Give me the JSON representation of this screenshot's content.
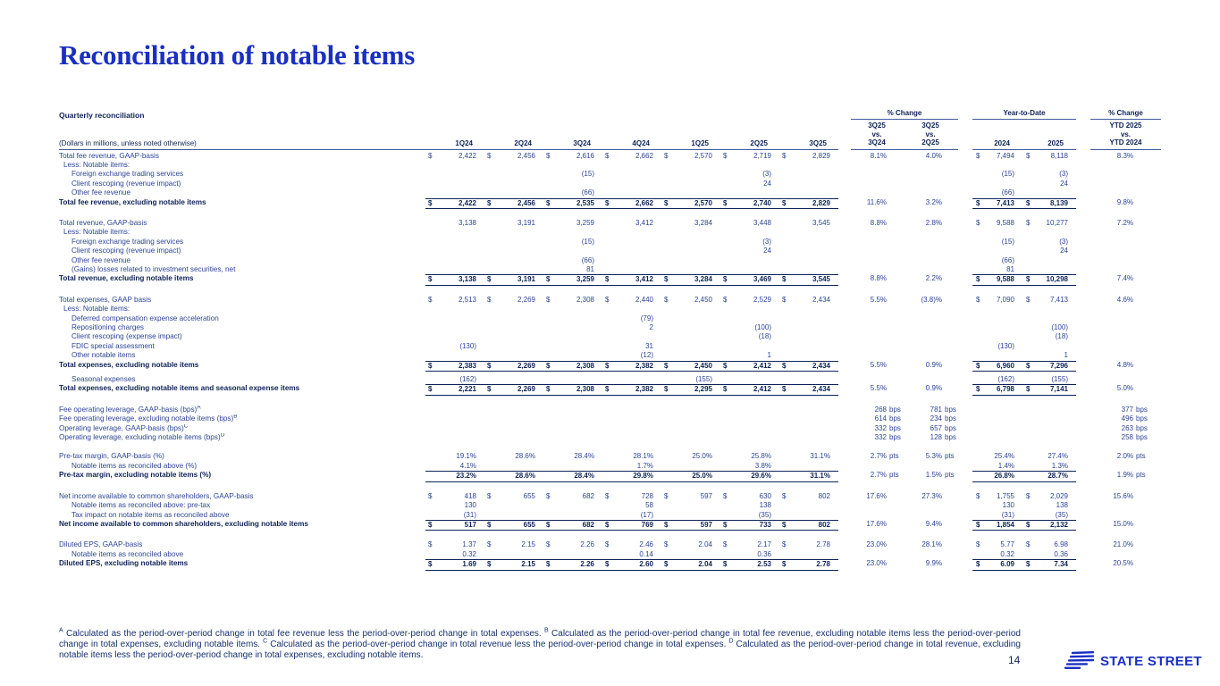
{
  "slide": {
    "title": "Reconciliation of notable items"
  },
  "colors": {
    "brand_blue": "#1a2fc2",
    "text_navy": "#2c4596",
    "dark_navy": "#0d2357"
  },
  "footer": {
    "page_number": "14",
    "logo_text": "STATE STREET",
    "logo_icon": "state-street-flag-icon"
  },
  "footnotes": [
    {
      "sup": "A",
      "text": "Calculated as the period-over-period change in total fee revenue less the period-over-period change in total expenses."
    },
    {
      "sup": "B",
      "text": "Calculated as the period-over-period change in total fee revenue, excluding notable items less the period-over-period change in total expenses, excluding notable items."
    },
    {
      "sup": "C",
      "text": "Calculated as the period-over-period change in total revenue less the period-over-period change in total expenses."
    },
    {
      "sup": "D",
      "text": "Calculated as the period-over-period change in total revenue, excluding notable items less the period-over-period change in total expenses, excluding notable items."
    }
  ],
  "table": {
    "section_title": "Quarterly reconciliation",
    "row_label_header": "(Dollars in millions, unless noted otherwise)",
    "quarter_columns": [
      "1Q24",
      "2Q24",
      "3Q24",
      "4Q24",
      "1Q25",
      "2Q25",
      "3Q25"
    ],
    "pct_change_header": "% Change",
    "ytd_header": "Year-to-Date",
    "ytd_pct_change_header": "% Change",
    "chg_col1": {
      "l1": "3Q25",
      "l2": "vs.",
      "l3": "3Q24"
    },
    "chg_col2": {
      "l1": "3Q25",
      "l2": "vs.",
      "l3": "2Q25"
    },
    "ytd_col1": "2024",
    "ytd_col2": "2025",
    "ytd_chg_col": {
      "l1": "YTD 2025",
      "l2": "vs.",
      "l3": "YTD 2024"
    },
    "rows": [
      {
        "label": "Total fee revenue, GAAP-basis",
        "indent": 0,
        "style": "normal",
        "cells": [
          "$2,422",
          "$2,456",
          "$2,616",
          "$2,662",
          "$2,570",
          "$2,719",
          "$2,829",
          "8.1%",
          "4.0%",
          "$7,494",
          "$8,118",
          "8.3%"
        ]
      },
      {
        "label": "Less: Notable items:",
        "indent": 1,
        "style": "normal",
        "cells": [
          "",
          "",
          "",
          "",
          "",
          "",
          "",
          "",
          "",
          "",
          "",
          ""
        ]
      },
      {
        "label": "Foreign exchange trading services",
        "indent": 2,
        "style": "normal",
        "cells": [
          "",
          "",
          "(15)",
          "",
          "",
          "(3)",
          "",
          "",
          "",
          "(15)",
          "(3)",
          ""
        ]
      },
      {
        "label": "Client rescoping (revenue impact)",
        "indent": 2,
        "style": "normal",
        "cells": [
          "",
          "",
          "",
          "",
          "",
          "24",
          "",
          "",
          "",
          "",
          "24",
          ""
        ]
      },
      {
        "label": "Other fee revenue",
        "indent": 2,
        "style": "normal",
        "cells": [
          "",
          "",
          "(66)",
          "",
          "",
          "",
          "",
          "",
          "",
          "(66)",
          "",
          ""
        ]
      },
      {
        "label": "Total fee revenue, excluding notable items",
        "indent": 0,
        "style": "total",
        "cells": [
          "$2,422",
          "$2,456",
          "$2,535",
          "$2,662",
          "$2,570",
          "$2,740",
          "$2,829",
          "11.6%",
          "3.2%",
          "$7,413",
          "$8,139",
          "9.8%"
        ]
      },
      {
        "style": "spacer"
      },
      {
        "label": "Total revenue, GAAP-basis",
        "indent": 0,
        "style": "normal",
        "cells": [
          "3,138",
          "3,191",
          "3,259",
          "3,412",
          "3,284",
          "3,448",
          "3,545",
          "8.8%",
          "2.8%",
          "$9,588",
          "$10,277",
          "7.2%"
        ]
      },
      {
        "label": "Less: Notable items:",
        "indent": 1,
        "style": "normal",
        "cells": [
          "",
          "",
          "",
          "",
          "",
          "",
          "",
          "",
          "",
          "",
          "",
          ""
        ]
      },
      {
        "label": "Foreign exchange trading services",
        "indent": 2,
        "style": "normal",
        "cells": [
          "",
          "",
          "(15)",
          "",
          "",
          "(3)",
          "",
          "",
          "",
          "(15)",
          "(3)",
          ""
        ]
      },
      {
        "label": "Client rescoping (revenue impact)",
        "indent": 2,
        "style": "normal",
        "cells": [
          "",
          "",
          "",
          "",
          "",
          "24",
          "",
          "",
          "",
          "",
          "24",
          ""
        ]
      },
      {
        "label": "Other fee revenue",
        "indent": 2,
        "style": "normal",
        "cells": [
          "",
          "",
          "(66)",
          "",
          "",
          "",
          "",
          "",
          "",
          "(66)",
          "",
          ""
        ]
      },
      {
        "label": "(Gains) losses related to investment securities, net",
        "indent": 2,
        "style": "normal",
        "cells": [
          "",
          "",
          "81",
          "",
          "",
          "",
          "",
          "",
          "",
          "81",
          "",
          ""
        ]
      },
      {
        "label": "Total revenue, excluding notable items",
        "indent": 0,
        "style": "total",
        "cells": [
          "$3,138",
          "$3,191",
          "$3,259",
          "$3,412",
          "$3,284",
          "$3,469",
          "$3,545",
          "8.8%",
          "2.2%",
          "$9,588",
          "$10,298",
          "7.4%"
        ]
      },
      {
        "style": "spacer"
      },
      {
        "label": "Total expenses, GAAP basis",
        "indent": 0,
        "style": "normal",
        "cells": [
          "$2,513",
          "$2,269",
          "$2,308",
          "$2,440",
          "$2,450",
          "$2,529",
          "$2,434",
          "5.5%",
          "(3.8)%",
          "$7,090",
          "$7,413",
          "4.6%"
        ]
      },
      {
        "label": "Less: Notable items:",
        "indent": 1,
        "style": "normal",
        "cells": [
          "",
          "",
          "",
          "",
          "",
          "",
          "",
          "",
          "",
          "",
          "",
          ""
        ]
      },
      {
        "label": "Deferred compensation expense acceleration",
        "indent": 2,
        "style": "normal",
        "cells": [
          "",
          "",
          "",
          "(79)",
          "",
          "",
          "",
          "",
          "",
          "",
          "",
          ""
        ]
      },
      {
        "label": "Repositioning charges",
        "indent": 2,
        "style": "normal",
        "cells": [
          "",
          "",
          "",
          "2",
          "",
          "(100)",
          "",
          "",
          "",
          "",
          "(100)",
          ""
        ]
      },
      {
        "label": "Client rescoping (expense impact)",
        "indent": 2,
        "style": "normal",
        "cells": [
          "",
          "",
          "",
          "",
          "",
          "(18)",
          "",
          "",
          "",
          "",
          "(18)",
          ""
        ]
      },
      {
        "label": "FDIC special assessment",
        "indent": 2,
        "style": "normal",
        "cells": [
          "(130)",
          "",
          "",
          "31",
          "",
          "",
          "",
          "",
          "",
          "(130)",
          "",
          ""
        ]
      },
      {
        "label": "Other notable items",
        "indent": 2,
        "style": "normal",
        "cells": [
          "",
          "",
          "",
          "(12)",
          "",
          "1",
          "",
          "",
          "",
          "",
          "1",
          ""
        ]
      },
      {
        "label": "Total expenses, excluding notable items",
        "indent": 0,
        "style": "total",
        "cells": [
          "$2,383",
          "$2,269",
          "$2,308",
          "$2,382",
          "$2,450",
          "$2,412",
          "$2,434",
          "5.5%",
          "0.9%",
          "$6,960",
          "$7,296",
          "4.8%"
        ]
      },
      {
        "style": "spacer-sm"
      },
      {
        "label": "Seasonal expenses",
        "indent": 2,
        "style": "normal",
        "cells": [
          "(162)",
          "",
          "",
          "",
          "(155)",
          "",
          "",
          "",
          "",
          "(162)",
          "(155)",
          ""
        ]
      },
      {
        "label": "Total expenses, excluding notable items and seasonal expense items",
        "indent": 0,
        "style": "total",
        "cells": [
          "$2,221",
          "$2,269",
          "$2,308",
          "$2,382",
          "$2,295",
          "$2,412",
          "$2,434",
          "5.5%",
          "0.9%",
          "$6,798",
          "$7,141",
          "5.0%"
        ]
      },
      {
        "style": "spacer"
      },
      {
        "label": "Fee operating leverage, GAAP-basis (bps)",
        "sup": "A",
        "indent": 0,
        "style": "normal",
        "cells": [
          "",
          "",
          "",
          "",
          "",
          "",
          "",
          "268 bps",
          "781 bps",
          "",
          "",
          "377 bps"
        ]
      },
      {
        "label": "Fee operating leverage, excluding notable items (bps)",
        "sup": "B",
        "indent": 0,
        "style": "normal",
        "cells": [
          "",
          "",
          "",
          "",
          "",
          "",
          "",
          "614 bps",
          "234 bps",
          "",
          "",
          "496 bps"
        ]
      },
      {
        "label": "Operating leverage, GAAP-basis (bps)",
        "sup": "C",
        "indent": 0,
        "style": "normal",
        "cells": [
          "",
          "",
          "",
          "",
          "",
          "",
          "",
          "332 bps",
          "657 bps",
          "",
          "",
          "263 bps"
        ]
      },
      {
        "label": "Operating leverage, excluding notable items (bps)",
        "sup": "D",
        "indent": 0,
        "style": "normal",
        "cells": [
          "",
          "",
          "",
          "",
          "",
          "",
          "",
          "332 bps",
          "128 bps",
          "",
          "",
          "258 bps"
        ]
      },
      {
        "style": "spacer"
      },
      {
        "label": "Pre-tax margin, GAAP-basis (%)",
        "indent": 0,
        "style": "normal",
        "cells": [
          "19.1%",
          "28.6%",
          "28.4%",
          "28.1%",
          "25.0%",
          "25.8%",
          "31.1%",
          "2.7% pts",
          "5.3% pts",
          "25.4%",
          "27.4%",
          "2.0% pts"
        ]
      },
      {
        "label": "Notable items as reconciled above (%)",
        "indent": 2,
        "style": "normal",
        "cells": [
          "4.1%",
          "",
          "",
          "1.7%",
          "",
          "3.8%",
          "",
          "",
          "",
          "1.4%",
          "1.3%",
          ""
        ]
      },
      {
        "label": "Pre-tax margin, excluding notable items (%)",
        "indent": 0,
        "style": "total",
        "cells": [
          "23.2%",
          "28.6%",
          "28.4%",
          "29.8%",
          "25.0%",
          "29.6%",
          "31.1%",
          "2.7% pts",
          "1.5% pts",
          "26.8%",
          "28.7%",
          "1.9% pts"
        ]
      },
      {
        "style": "spacer"
      },
      {
        "label": "Net income available to common shareholders, GAAP-basis",
        "indent": 0,
        "style": "normal",
        "cells": [
          "$418",
          "$655",
          "$682",
          "$728",
          "$597",
          "$630",
          "$802",
          "17.6%",
          "27.3%",
          "$1,755",
          "$2,029",
          "15.6%"
        ]
      },
      {
        "label": "Notable items as reconciled above: pre-tax",
        "indent": 2,
        "style": "normal",
        "cells": [
          "130",
          "",
          "",
          "58",
          "",
          "138",
          "",
          "",
          "",
          "130",
          "138",
          ""
        ]
      },
      {
        "label": "Tax impact on notable items as reconciled above",
        "indent": 2,
        "style": "normal",
        "cells": [
          "(31)",
          "",
          "",
          "(17)",
          "",
          "(35)",
          "",
          "",
          "",
          "(31)",
          "(35)",
          ""
        ]
      },
      {
        "label": "Net income available to common shareholders, excluding notable items",
        "indent": 0,
        "style": "total",
        "cells": [
          "$517",
          "$655",
          "$682",
          "$769",
          "$597",
          "$733",
          "$802",
          "17.6%",
          "9.4%",
          "$1,854",
          "$2,132",
          "15.0%"
        ]
      },
      {
        "style": "spacer"
      },
      {
        "label": "Diluted EPS, GAAP-basis",
        "indent": 0,
        "style": "normal",
        "cells": [
          "$1.37",
          "$2.15",
          "$2.26",
          "$2.46",
          "$2.04",
          "$2.17",
          "$2.78",
          "23.0%",
          "28.1%",
          "$5.77",
          "$6.98",
          "21.0%"
        ]
      },
      {
        "label": "Notable items as reconciled above",
        "indent": 2,
        "style": "normal",
        "cells": [
          "0.32",
          "",
          "",
          "0.14",
          "",
          "0.36",
          "",
          "",
          "",
          "0.32",
          "0.36",
          ""
        ]
      },
      {
        "label": "Diluted EPS, excluding notable items",
        "indent": 0,
        "style": "total",
        "cells": [
          "$1.69",
          "$2.15",
          "$2.26",
          "$2.60",
          "$2.04",
          "$2.53",
          "$2.78",
          "23.0%",
          "9.9%",
          "$6.09",
          "$7.34",
          "20.5%"
        ]
      }
    ]
  }
}
